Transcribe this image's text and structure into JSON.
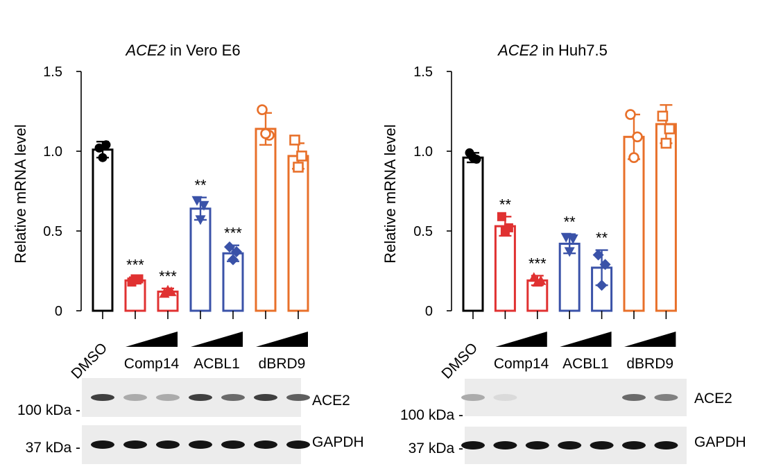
{
  "colors": {
    "black": "#000000",
    "red": "#e03131",
    "blue": "#3a52a8",
    "orange": "#e8702a"
  },
  "chart_data": [
    {
      "type": "bar",
      "title_gene": "ACE2",
      "title_rest": " in Vero E6",
      "ylabel": "Relative mRNA level",
      "ylim": [
        0,
        1.5
      ],
      "yticks": [
        "0",
        "0.5",
        "1.0",
        "1.5"
      ],
      "bars": [
        {
          "group": "DMSO",
          "value": 1.01,
          "err": 0.05,
          "color": "black",
          "marker": "circle",
          "points": [
            1.02,
            1.04,
            0.96
          ],
          "sig": ""
        },
        {
          "group": "Comp14",
          "value": 0.19,
          "err": 0.02,
          "color": "red",
          "marker": "square",
          "points": [
            0.18,
            0.2,
            0.2
          ],
          "sig": "***"
        },
        {
          "group": "Comp14",
          "value": 0.12,
          "err": 0.02,
          "color": "red",
          "marker": "triangle-up",
          "points": [
            0.11,
            0.12,
            0.13
          ],
          "sig": "***"
        },
        {
          "group": "ACBL1",
          "value": 0.64,
          "err": 0.07,
          "color": "blue",
          "marker": "triangle-down",
          "points": [
            0.69,
            0.66,
            0.57
          ],
          "sig": "**"
        },
        {
          "group": "ACBL1",
          "value": 0.36,
          "err": 0.05,
          "color": "blue",
          "marker": "diamond",
          "points": [
            0.4,
            0.37,
            0.32
          ],
          "sig": "***"
        },
        {
          "group": "dBRD9",
          "value": 1.14,
          "err": 0.1,
          "color": "orange",
          "marker": "circle",
          "points": [
            1.26,
            1.1,
            1.11
          ],
          "sig": ""
        },
        {
          "group": "dBRD9",
          "value": 0.97,
          "err": 0.08,
          "color": "orange",
          "marker": "square",
          "points": [
            1.07,
            0.97,
            0.9
          ],
          "sig": ""
        }
      ],
      "xlabels": {
        "dmso": "DMSO",
        "groups": [
          "Comp14",
          "ACBL1",
          "dBRD9"
        ]
      },
      "blot": {
        "ace2": {
          "label": "ACE2",
          "marker": "100 kDa",
          "intensities": [
            0.8,
            0.3,
            0.3,
            0.8,
            0.6,
            0.8,
            0.65
          ]
        },
        "gapdh": {
          "label": "GAPDH",
          "marker": "37 kDa",
          "intensities": [
            1,
            1,
            1,
            1,
            1,
            1,
            1
          ]
        }
      }
    },
    {
      "type": "bar",
      "title_gene": "ACE2",
      "title_rest": " in Huh7.5",
      "ylabel": "Relative mRNA level",
      "ylim": [
        0,
        1.5
      ],
      "yticks": [
        "0",
        "0.5",
        "1.0",
        "1.5"
      ],
      "bars": [
        {
          "group": "DMSO",
          "value": 0.96,
          "err": 0.03,
          "color": "black",
          "marker": "circle",
          "points": [
            0.99,
            0.95,
            0.96
          ],
          "sig": ""
        },
        {
          "group": "Comp14",
          "value": 0.53,
          "err": 0.06,
          "color": "red",
          "marker": "square",
          "points": [
            0.59,
            0.52,
            0.5
          ],
          "sig": "**"
        },
        {
          "group": "Comp14",
          "value": 0.19,
          "err": 0.03,
          "color": "red",
          "marker": "triangle-up",
          "points": [
            0.21,
            0.19,
            0.18
          ],
          "sig": "***"
        },
        {
          "group": "ACBL1",
          "value": 0.42,
          "err": 0.06,
          "color": "blue",
          "marker": "triangle-down",
          "points": [
            0.46,
            0.45,
            0.37
          ],
          "sig": "**"
        },
        {
          "group": "ACBL1",
          "value": 0.27,
          "err": 0.11,
          "color": "blue",
          "marker": "diamond",
          "points": [
            0.35,
            0.29,
            0.16
          ],
          "sig": "**"
        },
        {
          "group": "dBRD9",
          "value": 1.09,
          "err": 0.14,
          "color": "orange",
          "marker": "circle",
          "points": [
            1.23,
            1.09,
            0.96
          ],
          "sig": ""
        },
        {
          "group": "dBRD9",
          "value": 1.17,
          "err": 0.12,
          "color": "orange",
          "marker": "square",
          "points": [
            1.22,
            1.14,
            1.05
          ],
          "sig": ""
        }
      ],
      "xlabels": {
        "dmso": "DMSO",
        "groups": [
          "Comp14",
          "ACBL1",
          "dBRD9"
        ]
      },
      "blot": {
        "ace2": {
          "label": "ACE2",
          "marker": "100 kDa",
          "intensities": [
            0.3,
            0.08,
            0,
            0,
            0,
            0.6,
            0.5
          ]
        },
        "gapdh": {
          "label": "GAPDH",
          "marker": "37 kDa",
          "intensities": [
            1,
            1,
            1,
            1,
            1,
            1,
            1
          ]
        }
      }
    }
  ]
}
